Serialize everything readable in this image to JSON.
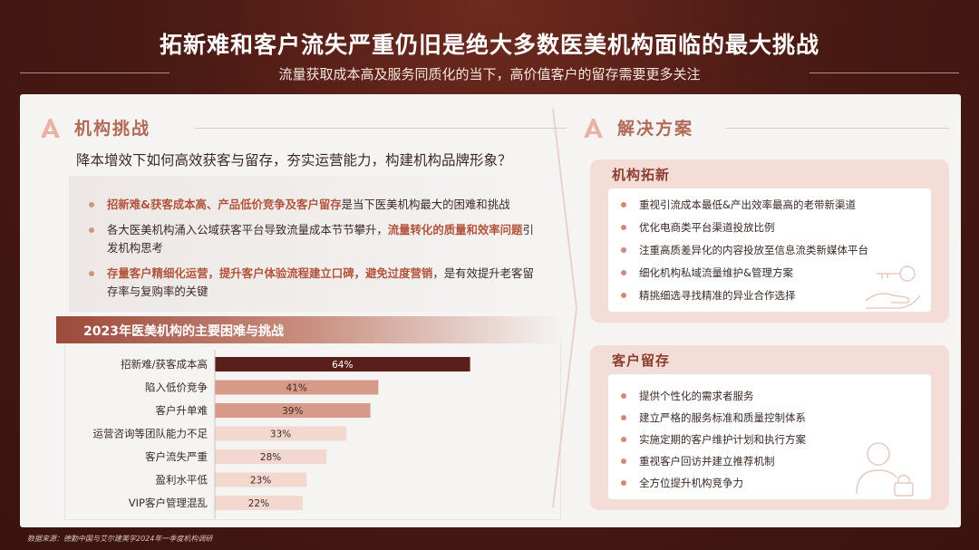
{
  "header": {
    "title": "拓新难和客户流失严重仍旧是绝大多数医美机构面临的最大挑战",
    "subtitle": "流量获取成本高及服务同质化的当下，高价值客户的留存需要更多关注"
  },
  "left": {
    "section_title": "机构挑战",
    "question": "降本增效下如何高效获客与留存，夯实运营能力，构建机构品牌形象？",
    "bullets": [
      {
        "parts": [
          {
            "text": "招新难&获客成本高、产品低价竞争及客户留存",
            "hl": true
          },
          {
            "text": "是当下医美机构最大的困难和挑战",
            "hl": false
          }
        ]
      },
      {
        "parts": [
          {
            "text": "各大医美机构涌入公域获客平台导致流量成本节节攀升，",
            "hl": false
          },
          {
            "text": "流量转化的质量和效率问题",
            "hl": true
          },
          {
            "text": "引发机构思考",
            "hl": false
          }
        ]
      },
      {
        "parts": [
          {
            "text": "存量客户精细化运营，提升客户体验流程建立口碑，避免过度营销",
            "hl": true
          },
          {
            "text": "，是有效提升老客留存率与复购率的关键",
            "hl": false
          }
        ]
      }
    ]
  },
  "chart_data": {
    "type": "bar",
    "orientation": "horizontal",
    "title": "2023年医美机构的主要困难与挑战",
    "categories": [
      "招新难/获客成本高",
      "陷入低价竞争",
      "客户升单难",
      "运营咨询等团队能力不足",
      "客户流失严重",
      "盈利水平低",
      "VIP客户管理混乱"
    ],
    "values": [
      64,
      41,
      39,
      33,
      28,
      23,
      22
    ],
    "value_labels": [
      "64%",
      "41%",
      "39%",
      "33%",
      "28%",
      "23%",
      "22%"
    ],
    "colors": [
      "#5a1f1b",
      "#d89a88",
      "#d89a88",
      "#f2d8cf",
      "#f2d8cf",
      "#f2d8cf",
      "#f2d8cf"
    ],
    "label_colors": [
      "#ffffff",
      "#3a2a26",
      "#3a2a26",
      "#3a2a26",
      "#3a2a26",
      "#3a2a26",
      "#3a2a26"
    ],
    "xlim": [
      0,
      100
    ],
    "grid": false
  },
  "right": {
    "section_title": "解决方案",
    "cards": [
      {
        "title": "机构拓新",
        "items": [
          "重视引流成本最低&产出效率最高的老带新渠道",
          "优化电商类平台渠道投放比例",
          "注重高质差异化的内容投放至信息流类新媒体平台",
          "细化机构私域流量维护&管理方案",
          "精挑细选寻找精准的异业合作选择"
        ]
      },
      {
        "title": "客户留存",
        "items": [
          "提供个性化的需求者服务",
          "建立严格的服务标准和质量控制体系",
          "实施定期的客户维护计划和执行方案",
          "重视客户回访并建立推荐机制",
          "全方位提升机构竞争力"
        ]
      }
    ]
  },
  "source": "数据来源：德勤中国与艾尔建美学2024年一季度机构调研",
  "icons": {
    "section": "letter-a-logo-icon",
    "arrow": "chevron-right-icon",
    "card1_deco": "key-hand-icon",
    "card2_deco": "person-lock-icon"
  }
}
